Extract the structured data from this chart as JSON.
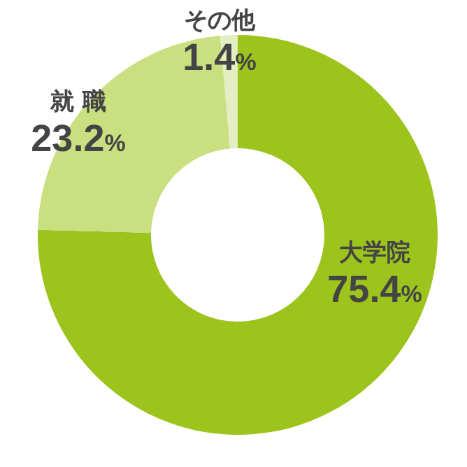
{
  "chart_data": {
    "type": "donut",
    "categories": [
      "大学院",
      "就 職",
      "その他"
    ],
    "values": [
      75.4,
      23.2,
      1.4
    ],
    "colors": [
      "#9dc31d",
      "#c9df80",
      "#e3eec2"
    ],
    "value_labels": [
      "75.4%",
      "23.2%",
      "1.4%"
    ]
  }
}
